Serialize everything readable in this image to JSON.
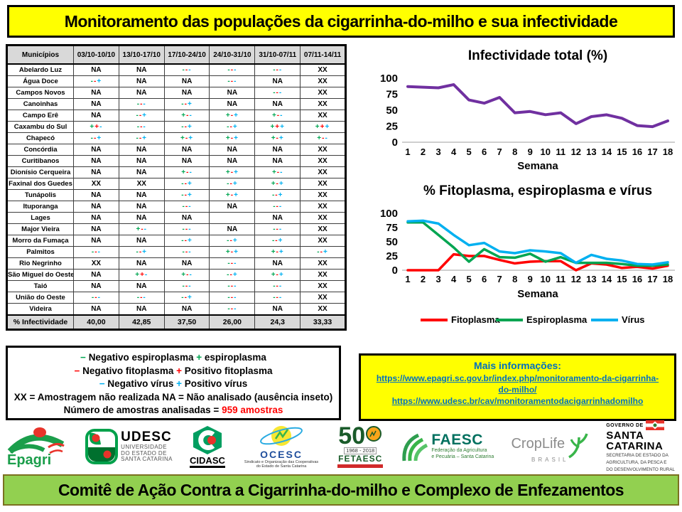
{
  "title_banner": {
    "text": "Monitoramento das populações da cigarrinha-do-milho e sua infectividade"
  },
  "footer_banner": {
    "text": "Comitê de Ação Contra a Cigarrinha-do-milho e Complexo de Enfezamentos"
  },
  "symbol_colors": {
    "espiroplasma": "#00A551",
    "fitoplasma": "#FF0000",
    "virus": "#00B0F0"
  },
  "table": {
    "header": [
      "Municípios",
      "03/10-10/10",
      "13/10-17/10",
      "17/10-24/10",
      "24/10-31/10",
      "31/10-07/11",
      "07/11-14/11"
    ],
    "rows": [
      {
        "name": "Abelardo Luz",
        "cells": [
          "NA",
          "NA",
          "---",
          "---",
          "---",
          "XX"
        ]
      },
      {
        "name": "Água Doce",
        "cells": [
          "--+",
          "NA",
          "NA",
          "---",
          "NA",
          "XX"
        ]
      },
      {
        "name": "Campos Novos",
        "cells": [
          "NA",
          "NA",
          "NA",
          "NA",
          "---",
          "XX"
        ]
      },
      {
        "name": "Canoinhas",
        "cells": [
          "NA",
          "---",
          "--+",
          "NA",
          "NA",
          "XX"
        ]
      },
      {
        "name": "Campo Erê",
        "cells": [
          "NA",
          "--+",
          "+--",
          "+-+",
          "+--",
          "XX"
        ]
      },
      {
        "name": "Caxambu do Sul",
        "cells": [
          "++-",
          "---",
          "--+",
          "--+",
          "+++",
          "+++"
        ]
      },
      {
        "name": "Chapecó",
        "cells": [
          "--+",
          "--+",
          "+-+",
          "+-+",
          "+-+",
          "+--"
        ]
      },
      {
        "name": "Concórdia",
        "cells": [
          "NA",
          "NA",
          "NA",
          "NA",
          "NA",
          "XX"
        ]
      },
      {
        "name": "Curitibanos",
        "cells": [
          "NA",
          "NA",
          "NA",
          "NA",
          "NA",
          "XX"
        ]
      },
      {
        "name": "Dionísio Cerqueira",
        "cells": [
          "NA",
          "NA",
          "+--",
          "+-+",
          "+--",
          "XX"
        ]
      },
      {
        "name": "Faxinal dos Guedes",
        "cells": [
          "XX",
          "XX",
          "--+",
          "--+",
          "+-+",
          "XX"
        ]
      },
      {
        "name": "Tunápolis",
        "cells": [
          "NA",
          "NA",
          "--+",
          "+-+",
          "--+",
          "XX"
        ]
      },
      {
        "name": "Ituporanga",
        "cells": [
          "NA",
          "NA",
          "---",
          "NA",
          "---",
          "XX"
        ]
      },
      {
        "name": "Lages",
        "cells": [
          "NA",
          "NA",
          "NA",
          "",
          "NA",
          "XX"
        ]
      },
      {
        "name": "Major Vieira",
        "cells": [
          "NA",
          "+--",
          "---",
          "NA",
          "---",
          "XX"
        ]
      },
      {
        "name": "Morro da Fumaça",
        "cells": [
          "NA",
          "NA",
          "--+",
          "--+",
          "--+",
          "XX"
        ]
      },
      {
        "name": "Palmitos",
        "cells": [
          "---",
          "--+",
          "---",
          "+-+",
          "+-+",
          "--+"
        ]
      },
      {
        "name": "Rio Negrinho",
        "cells": [
          "XX",
          "NA",
          "NA",
          "---",
          "NA",
          "XX"
        ]
      },
      {
        "name": "São Miguel do Oeste",
        "cells": [
          "NA",
          "++-",
          "+--",
          "--+",
          "+-+",
          "XX"
        ]
      },
      {
        "name": "Taió",
        "cells": [
          "NA",
          "NA",
          "---",
          "---",
          "---",
          "XX"
        ]
      },
      {
        "name": "União do Oeste",
        "cells": [
          "---",
          "---",
          "--+",
          "---",
          "---",
          "XX"
        ]
      },
      {
        "name": "Videira",
        "cells": [
          "NA",
          "NA",
          "NA",
          "---",
          "NA",
          "XX"
        ]
      }
    ],
    "summary_row": {
      "name": "% Infectividade",
      "cells": [
        "40,00",
        "42,85",
        "37,50",
        "26,00",
        "24,3",
        "33,33"
      ]
    }
  },
  "chart_data": [
    {
      "type": "line",
      "title": "Infectividade total (%)",
      "xlabel": "Semana",
      "x": [
        1,
        2,
        3,
        4,
        5,
        6,
        7,
        8,
        9,
        10,
        11,
        12,
        13,
        14,
        15,
        16,
        17,
        18
      ],
      "ylim": [
        0,
        100
      ],
      "yticks": [
        100,
        75,
        50,
        25,
        0
      ],
      "grid": false,
      "legend": false,
      "series": [
        {
          "name": "Infectividade total",
          "color": "#7030A0",
          "values": [
            87,
            86,
            85,
            90,
            66,
            61,
            70,
            46,
            48,
            43,
            46,
            29,
            40,
            42.9,
            37.5,
            26,
            24.3,
            33.3
          ]
        }
      ]
    },
    {
      "type": "line",
      "title": "% Fitoplasma, espiroplasma e vírus",
      "xlabel": "Semana",
      "x": [
        1,
        2,
        3,
        4,
        5,
        6,
        7,
        8,
        9,
        10,
        11,
        12,
        13,
        14,
        15,
        16,
        17,
        18
      ],
      "ylim": [
        0,
        100
      ],
      "yticks": [
        100,
        75,
        50,
        25,
        0
      ],
      "grid": false,
      "legend": true,
      "legend_position": "bottom",
      "series": [
        {
          "name": "Fitoplasma",
          "color": "#FF0000",
          "values": [
            0,
            0,
            0,
            28,
            25,
            25,
            18,
            12,
            15,
            16,
            16,
            0,
            12,
            10,
            4,
            6,
            3,
            8
          ]
        },
        {
          "name": "Espiroplasma",
          "color": "#00A551",
          "values": [
            84,
            84,
            62,
            40,
            15,
            37,
            23,
            22,
            29,
            15,
            23,
            13,
            13,
            13,
            11,
            8,
            8,
            10
          ]
        },
        {
          "name": "Vírus",
          "color": "#00B0F0",
          "values": [
            86,
            87,
            82,
            62,
            44,
            48,
            33,
            30,
            35,
            33,
            30,
            13,
            27,
            20,
            17,
            11,
            10,
            14
          ]
        }
      ]
    }
  ],
  "legend_box": {
    "lines": [
      [
        {
          "t": "− ",
          "c": "g"
        },
        {
          "t": "Negativo espiroplasma  ",
          "c": "k"
        },
        {
          "t": "+ ",
          "c": "g"
        },
        {
          "t": "espiroplasma",
          "c": "k"
        }
      ],
      [
        {
          "t": "− ",
          "c": "r"
        },
        {
          "t": "Negativo fitoplasma ",
          "c": "k"
        },
        {
          "t": "+ ",
          "c": "r"
        },
        {
          "t": "Positivo fitoplasma",
          "c": "k"
        }
      ],
      [
        {
          "t": "− ",
          "c": "c"
        },
        {
          "t": "Negativo vírus  ",
          "c": "k"
        },
        {
          "t": "+ ",
          "c": "c"
        },
        {
          "t": "Positivo vírus",
          "c": "k"
        }
      ],
      [
        {
          "t": "XX = Amostragem  não realizada    NA = Não analisado (ausência  inseto)",
          "c": "k"
        }
      ],
      [
        {
          "t": "Número de amostras analisadas = ",
          "c": "k"
        },
        {
          "t": "959 amostras",
          "c": "r"
        }
      ]
    ]
  },
  "info_box": {
    "title": "Mais informações:",
    "links": [
      "https://www.epagri.sc.gov.br/index.php/monitoramento-da-cigarrinha-do-milho/",
      "https://www.udesc.br/cav/monitoramentodacigarrinhadomilho"
    ]
  },
  "logos": {
    "epagri": {
      "name": "Epagri"
    },
    "udesc": {
      "acronym": "UDESC",
      "line1": "UNIVERSIDADE",
      "line2": "DO ESTADO DE",
      "line3": "SANTA CATARINA"
    },
    "cidasc": {
      "name": "CIDASC"
    },
    "ocesc": {
      "name": "OCESC",
      "subtitle": "Sindicato e Organização das Cooperativas do Estado de Santa Catarina"
    },
    "fetaesc": {
      "number": "50",
      "years": "1968 - 2018",
      "name": "FETAESC"
    },
    "faesc": {
      "name": "FAESC",
      "line1": "Federação da Agricultura",
      "line2": "e Pecuária – Santa Catarina"
    },
    "croplife": {
      "name": "CropLife",
      "subtitle": "BRASIL"
    },
    "govsc": {
      "top": "GOVERNO DE",
      "big1": "SANTA",
      "big2": "CATARINA",
      "line1": "SECRETARIA DE ESTADO DA",
      "line2": "AGRICULTURA, DA PESCA E",
      "line3": "DO DESENVOLVIMENTO RURAL"
    }
  }
}
